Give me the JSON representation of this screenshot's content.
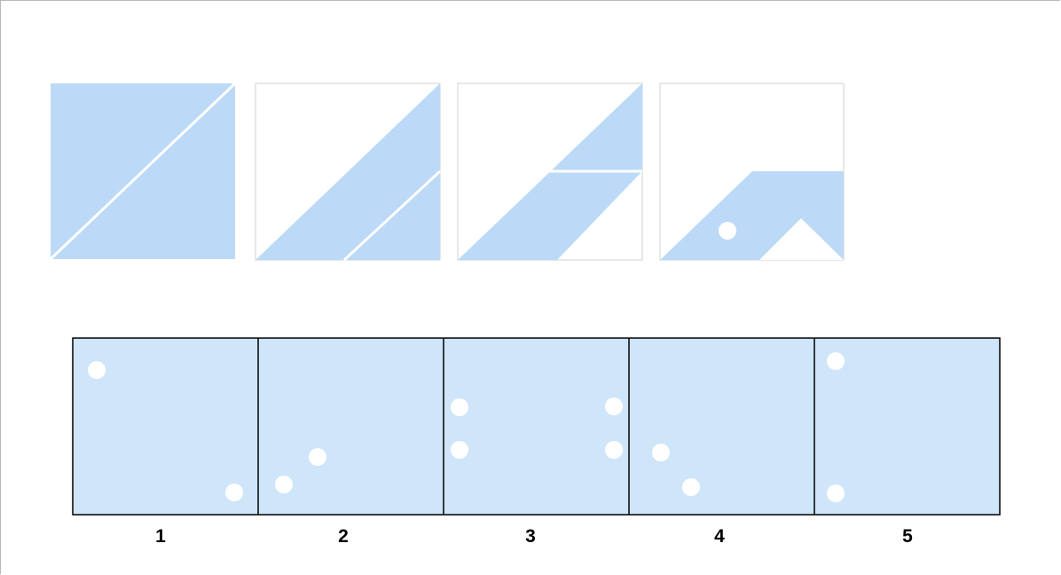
{
  "colors": {
    "shape_fill": "#bcdaf7",
    "option_fill": "#cfe5fa",
    "dot": "#ffffff",
    "border": "#000000",
    "frame_border": "#b9b9b9"
  },
  "sequence_figures": [
    {
      "index": 1,
      "description_shape": "square split by white diagonal line",
      "dots": 0
    },
    {
      "index": 2,
      "description_shape": "diagonal band with cut corner",
      "dots": 0
    },
    {
      "index": 3,
      "description_shape": "diagonal band split by white horizontal line",
      "dots": 0
    },
    {
      "index": 4,
      "description_shape": "bent band with one white dot and triangular notch",
      "dots": 1
    }
  ],
  "options": [
    {
      "label": "1",
      "dots": 2
    },
    {
      "label": "2",
      "dots": 2
    },
    {
      "label": "3",
      "dots": 4
    },
    {
      "label": "4",
      "dots": 2
    },
    {
      "label": "5",
      "dots": 2
    }
  ]
}
